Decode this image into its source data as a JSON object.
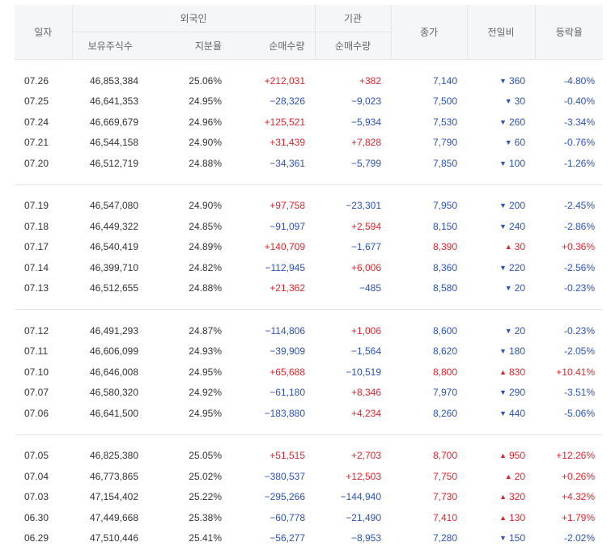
{
  "header": {
    "date": "일자",
    "foreign": "외국인",
    "institution": "기관",
    "close": "종가",
    "change": "전일비",
    "rate": "등락율",
    "holding_shares": "보유주식수",
    "ratio": "지분율",
    "foreign_net": "순매수량",
    "inst_net": "순매수량"
  },
  "colors": {
    "up": "#e0242b",
    "down": "#2b52b8"
  },
  "groups": [
    [
      {
        "date": "07.26",
        "shares": "46,853,384",
        "ratio": "25.06%",
        "fnet": "+212,031",
        "inet": "+382",
        "close": "7,140",
        "dir": "down",
        "diff": "360",
        "rate": "-4.80%"
      },
      {
        "date": "07.25",
        "shares": "46,641,353",
        "ratio": "24.95%",
        "fnet": "−28,326",
        "inet": "−9,023",
        "close": "7,500",
        "dir": "down",
        "diff": "30",
        "rate": "-0.40%"
      },
      {
        "date": "07.24",
        "shares": "46,669,679",
        "ratio": "24.96%",
        "fnet": "+125,521",
        "inet": "−5,934",
        "close": "7,530",
        "dir": "down",
        "diff": "260",
        "rate": "-3.34%"
      },
      {
        "date": "07.21",
        "shares": "46,544,158",
        "ratio": "24.90%",
        "fnet": "+31,439",
        "inet": "+7,828",
        "close": "7,790",
        "dir": "down",
        "diff": "60",
        "rate": "-0.76%"
      },
      {
        "date": "07.20",
        "shares": "46,512,719",
        "ratio": "24.88%",
        "fnet": "−34,361",
        "inet": "−5,799",
        "close": "7,850",
        "dir": "down",
        "diff": "100",
        "rate": "-1.26%"
      }
    ],
    [
      {
        "date": "07.19",
        "shares": "46,547,080",
        "ratio": "24.90%",
        "fnet": "+97,758",
        "inet": "−23,301",
        "close": "7,950",
        "dir": "down",
        "diff": "200",
        "rate": "-2.45%"
      },
      {
        "date": "07.18",
        "shares": "46,449,322",
        "ratio": "24.85%",
        "fnet": "−91,097",
        "inet": "+2,594",
        "close": "8,150",
        "dir": "down",
        "diff": "240",
        "rate": "-2.86%"
      },
      {
        "date": "07.17",
        "shares": "46,540,419",
        "ratio": "24.89%",
        "fnet": "+140,709",
        "inet": "−1,677",
        "close": "8,390",
        "dir": "up",
        "diff": "30",
        "rate": "+0.36%"
      },
      {
        "date": "07.14",
        "shares": "46,399,710",
        "ratio": "24.82%",
        "fnet": "−112,945",
        "inet": "+6,006",
        "close": "8,360",
        "dir": "down",
        "diff": "220",
        "rate": "-2.56%"
      },
      {
        "date": "07.13",
        "shares": "46,512,655",
        "ratio": "24.88%",
        "fnet": "+21,362",
        "inet": "−485",
        "close": "8,580",
        "dir": "down",
        "diff": "20",
        "rate": "-0.23%"
      }
    ],
    [
      {
        "date": "07.12",
        "shares": "46,491,293",
        "ratio": "24.87%",
        "fnet": "−114,806",
        "inet": "+1,006",
        "close": "8,600",
        "dir": "down",
        "diff": "20",
        "rate": "-0.23%"
      },
      {
        "date": "07.11",
        "shares": "46,606,099",
        "ratio": "24.93%",
        "fnet": "−39,909",
        "inet": "−1,564",
        "close": "8,620",
        "dir": "down",
        "diff": "180",
        "rate": "-2.05%"
      },
      {
        "date": "07.10",
        "shares": "46,646,008",
        "ratio": "24.95%",
        "fnet": "+65,688",
        "inet": "−10,519",
        "close": "8,800",
        "dir": "up",
        "diff": "830",
        "rate": "+10.41%"
      },
      {
        "date": "07.07",
        "shares": "46,580,320",
        "ratio": "24.92%",
        "fnet": "−61,180",
        "inet": "+8,346",
        "close": "7,970",
        "dir": "down",
        "diff": "290",
        "rate": "-3.51%"
      },
      {
        "date": "07.06",
        "shares": "46,641,500",
        "ratio": "24.95%",
        "fnet": "−183,880",
        "inet": "+4,234",
        "close": "8,260",
        "dir": "down",
        "diff": "440",
        "rate": "-5.06%"
      }
    ],
    [
      {
        "date": "07.05",
        "shares": "46,825,380",
        "ratio": "25.05%",
        "fnet": "+51,515",
        "inet": "+2,703",
        "close": "8,700",
        "dir": "up",
        "diff": "950",
        "rate": "+12.26%"
      },
      {
        "date": "07.04",
        "shares": "46,773,865",
        "ratio": "25.02%",
        "fnet": "−380,537",
        "inet": "+12,503",
        "close": "7,750",
        "dir": "up",
        "diff": "20",
        "rate": "+0.26%"
      },
      {
        "date": "07.03",
        "shares": "47,154,402",
        "ratio": "25.22%",
        "fnet": "−295,266",
        "inet": "−144,940",
        "close": "7,730",
        "dir": "up",
        "diff": "320",
        "rate": "+4.32%"
      },
      {
        "date": "06.30",
        "shares": "47,449,668",
        "ratio": "25.38%",
        "fnet": "−60,778",
        "inet": "−21,490",
        "close": "7,410",
        "dir": "up",
        "diff": "130",
        "rate": "+1.79%"
      },
      {
        "date": "06.29",
        "shares": "47,510,446",
        "ratio": "25.41%",
        "fnet": "−56,277",
        "inet": "−8,953",
        "close": "7,280",
        "dir": "down",
        "diff": "150",
        "rate": "-2.02%"
      }
    ]
  ]
}
